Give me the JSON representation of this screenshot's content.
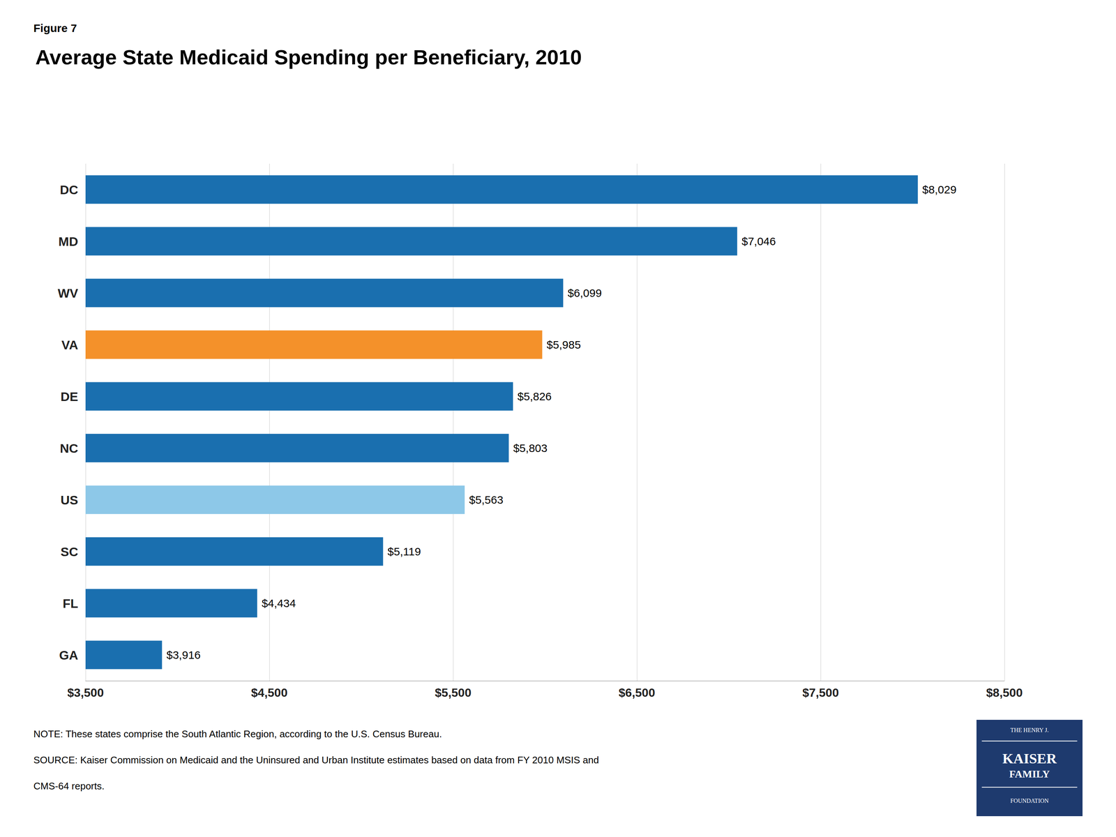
{
  "chart_data": {
    "type": "bar",
    "orientation": "horizontal",
    "title": "Average State Medicaid Spending per Beneficiary, 2010",
    "annotations": [
      "Figure 7",
      "NOTE: These states comprise the South Atlantic Region, according to the U.S. Census Bureau.",
      "SOURCE: Kaiser Commission on Medicaid and the Uninsured and Urban Institute estimates based on data from FY 2010 MSIS and",
      "CMS-64 reports.",
      "THE HENRY J.",
      "KAISER",
      "FAMILY",
      "FOUNDATION"
    ],
    "categories": [
      "DC",
      "MD",
      "WV",
      "VA",
      "DE",
      "NC",
      "US",
      "SC",
      "FL",
      "GA"
    ],
    "values": [
      8029,
      7046,
      6099,
      5985,
      5826,
      5803,
      5563,
      5119,
      4434,
      3916
    ],
    "value_labels": [
      "$8,029",
      "$7,046",
      "$6,099",
      "$5,985",
      "$5,826",
      "$5,803",
      "$5,563",
      "$5,119",
      "$4,434",
      "$3,916"
    ],
    "data_labels": true,
    "colors": [
      "#1a6faf",
      "#1a6faf",
      "#1a6faf",
      "#f4912a",
      "#1a6faf",
      "#1a6faf",
      "#8dc8e8",
      "#1a6faf",
      "#1a6faf",
      "#1a6faf"
    ],
    "xlim": [
      3500,
      8500
    ],
    "xticks": [
      {
        "value": 3500,
        "label": "$3,500"
      },
      {
        "value": 4500,
        "label": "$4,500"
      },
      {
        "value": 5500,
        "label": "$5,500"
      },
      {
        "value": 6500,
        "label": "$6,500"
      },
      {
        "value": 7500,
        "label": "$7,500"
      },
      {
        "value": 8500,
        "label": "$8,500"
      }
    ],
    "grid": true
  }
}
